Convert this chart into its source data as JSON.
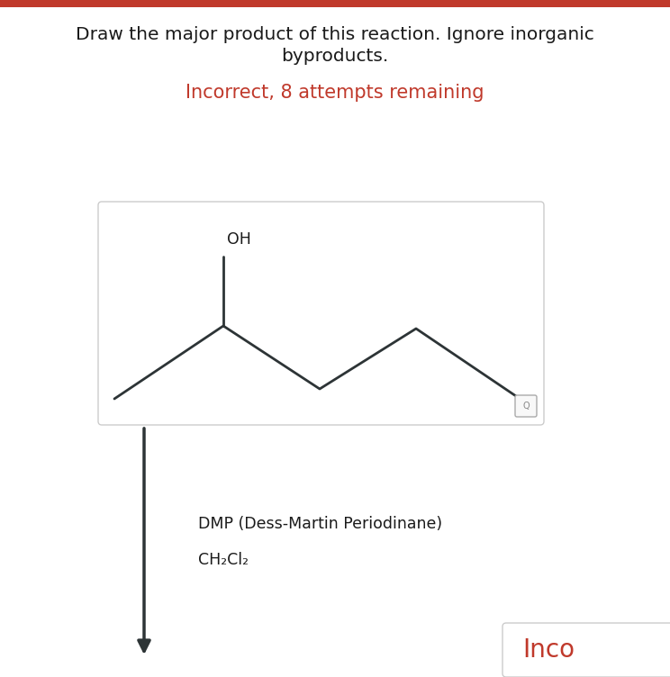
{
  "title_line1": "Draw the major product of this reaction. Ignore inorganic",
  "title_line2": "byproducts.",
  "title_fontsize": 14.5,
  "title_color": "#1a1a1a",
  "status_text": "Incorrect, 8 attempts remaining",
  "status_color": "#c0392b",
  "status_fontsize": 15,
  "background_color": "#ffffff",
  "arrow_color": "#2d3436",
  "reagent1": "DMP (Dess-Martin Periodinane)",
  "reagent2": "CH₂Cl₂",
  "reagent_fontsize": 12.5,
  "reagent_color": "#1a1a1a",
  "oh_label": "OH",
  "oh_fontsize": 12.5,
  "oh_color": "#1a1a1a",
  "inco_text": "Inco",
  "inco_color": "#c0392b",
  "inco_fontsize": 20,
  "red_bar_color": "#c0392b"
}
